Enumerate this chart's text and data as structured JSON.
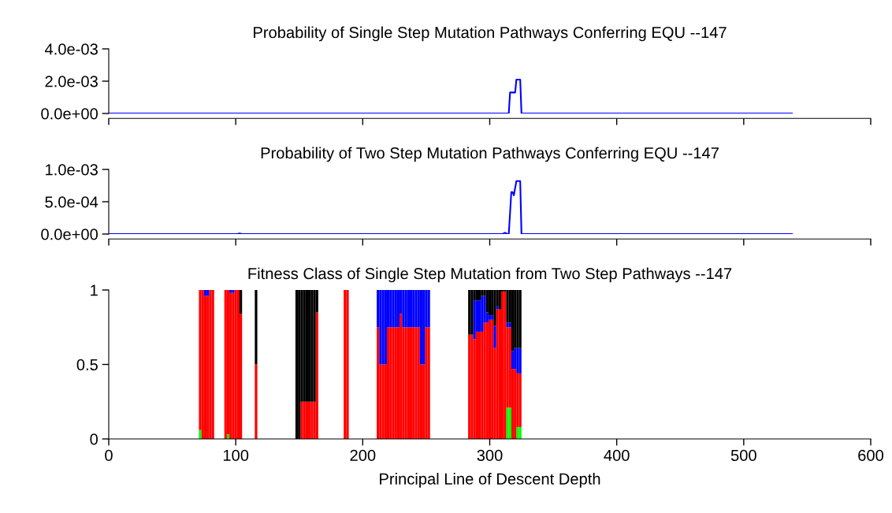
{
  "chart_data": [
    {
      "type": "line",
      "title": "Probability of Single Step Mutation Pathways Conferring EQU --147",
      "xlim": [
        0,
        600
      ],
      "xticks": [
        0,
        100,
        200,
        300,
        400,
        500,
        600
      ],
      "ylim": [
        0,
        0.004
      ],
      "yticks": [
        {
          "value": 0,
          "label": "0.0e+00"
        },
        {
          "value": 0.002,
          "label": "2.0e-03"
        },
        {
          "value": 0.004,
          "label": "4.0e-03"
        }
      ],
      "tick_labels": "y",
      "series": [
        {
          "color": "#0000ff",
          "x": [
            0,
            315,
            316,
            320,
            321,
            324,
            325,
            538
          ],
          "values": [
            0,
            0,
            0.0013,
            0.0013,
            0.0021,
            0.0021,
            0,
            0
          ]
        }
      ]
    },
    {
      "type": "line",
      "title": "Probability of Two Step Mutation Pathways Conferring EQU --147",
      "xlim": [
        0,
        600
      ],
      "xticks": [
        0,
        100,
        200,
        300,
        400,
        500,
        600
      ],
      "ylim": [
        0,
        0.001
      ],
      "yticks": [
        {
          "value": 0,
          "label": "0.0e+00"
        },
        {
          "value": 0.0005,
          "label": "5.0e-04"
        },
        {
          "value": 0.001,
          "label": "1.0e-03"
        }
      ],
      "tick_labels": "y",
      "series": [
        {
          "color": "#0000ff",
          "x": [
            0,
            101,
            103,
            105,
            310,
            312,
            314,
            315,
            317,
            318,
            319,
            321,
            324,
            325,
            538
          ],
          "values": [
            0,
            0,
            1e-05,
            0,
            0,
            2e-05,
            0,
            0,
            0.00065,
            0.00065,
            0.0006,
            0.00082,
            0.00082,
            0,
            0
          ]
        }
      ]
    },
    {
      "type": "bar",
      "stacked": true,
      "title": "Fitness Class of Single Step Mutation from Two Step Pathways --147",
      "xlabel": "Principal Line of Descent Depth",
      "xlim": [
        0,
        600
      ],
      "xticks": [
        0,
        100,
        200,
        300,
        400,
        500,
        600
      ],
      "ylim": [
        0,
        1
      ],
      "yticks": [
        0,
        0.5,
        1
      ],
      "x": [
        72,
        74,
        76,
        78,
        80,
        82,
        92,
        94,
        96,
        98,
        100,
        102,
        104,
        116,
        148,
        150,
        152,
        154,
        156,
        158,
        160,
        162,
        164,
        186,
        188,
        212,
        214,
        216,
        218,
        220,
        222,
        224,
        226,
        228,
        230,
        232,
        234,
        236,
        238,
        240,
        242,
        244,
        246,
        248,
        250,
        252,
        284,
        286,
        288,
        290,
        292,
        294,
        296,
        298,
        300,
        302,
        304,
        306,
        308,
        310,
        312,
        314,
        316,
        318,
        320,
        322,
        324
      ],
      "series": [
        {
          "color": "#00ff00",
          "values": [
            0.06,
            0,
            0,
            0,
            0,
            0,
            0,
            0.03,
            0,
            0,
            0,
            0,
            0,
            0,
            0,
            0,
            0,
            0,
            0,
            0,
            0,
            0,
            0,
            0,
            0,
            0,
            0,
            0,
            0,
            0,
            0,
            0,
            0,
            0,
            0,
            0,
            0,
            0,
            0,
            0,
            0,
            0,
            0,
            0,
            0,
            0,
            0,
            0,
            0,
            0,
            0,
            0,
            0,
            0,
            0,
            0,
            0,
            0,
            0,
            0,
            0,
            0.21,
            0.21,
            0,
            0,
            0.08,
            0.08
          ]
        },
        {
          "color": "#ff0000",
          "values": [
            0.94,
            1,
            0.96,
            0.96,
            1,
            1,
            1,
            0.97,
            0.98,
            0.98,
            1,
            1,
            0.84,
            0.5,
            0,
            0,
            0.25,
            0.25,
            0.25,
            0.25,
            0.25,
            0.25,
            0.85,
            1,
            1,
            0.75,
            0.5,
            0.5,
            0.5,
            0.75,
            0.75,
            0.75,
            0.75,
            0.75,
            0.84,
            0.75,
            0.75,
            0.75,
            0.75,
            0.75,
            0.75,
            0.75,
            0.5,
            0.5,
            0.75,
            0.75,
            0.7,
            0.7,
            0.67,
            0.72,
            0.72,
            0.72,
            0.78,
            0.78,
            0.8,
            0.8,
            0.61,
            0.87,
            0.87,
            0.99,
            0.99,
            0.54,
            0.54,
            0.47,
            0.47,
            0.36,
            0.36
          ]
        },
        {
          "color": "#0000ff",
          "values": [
            0,
            0,
            0.04,
            0.04,
            0,
            0,
            0,
            0,
            0.02,
            0.02,
            0,
            0,
            0,
            0,
            0,
            0,
            0,
            0,
            0,
            0,
            0,
            0,
            0,
            0,
            0,
            0.25,
            0.5,
            0.5,
            0.5,
            0.25,
            0.25,
            0.25,
            0.25,
            0.25,
            0.16,
            0.25,
            0.25,
            0.25,
            0.25,
            0.25,
            0.25,
            0.25,
            0.5,
            0.5,
            0.25,
            0.25,
            0,
            0,
            0.26,
            0.21,
            0.21,
            0.24,
            0.18,
            0.07,
            0.03,
            0.03,
            0.15,
            0.02,
            0,
            0,
            0,
            0.03,
            0.03,
            0.12,
            0.14,
            0.17,
            0.17
          ]
        },
        {
          "color": "#000000",
          "values": [
            0,
            0,
            0,
            0,
            0,
            0,
            0,
            0,
            0,
            0,
            0,
            0,
            0.16,
            0.5,
            1,
            1,
            0.75,
            0.75,
            0.75,
            0.75,
            0.75,
            0.75,
            0.15,
            0,
            0,
            0,
            0,
            0,
            0,
            0,
            0,
            0,
            0,
            0,
            0,
            0,
            0,
            0,
            0,
            0,
            0,
            0,
            0,
            0,
            0,
            0,
            0.3,
            0.3,
            0.07,
            0.07,
            0.07,
            0.04,
            0.04,
            0.15,
            0.17,
            0.17,
            0.24,
            0.11,
            0.13,
            0.01,
            0.01,
            0.22,
            0.22,
            0.41,
            0.39,
            0.39,
            0.39
          ]
        }
      ]
    }
  ]
}
